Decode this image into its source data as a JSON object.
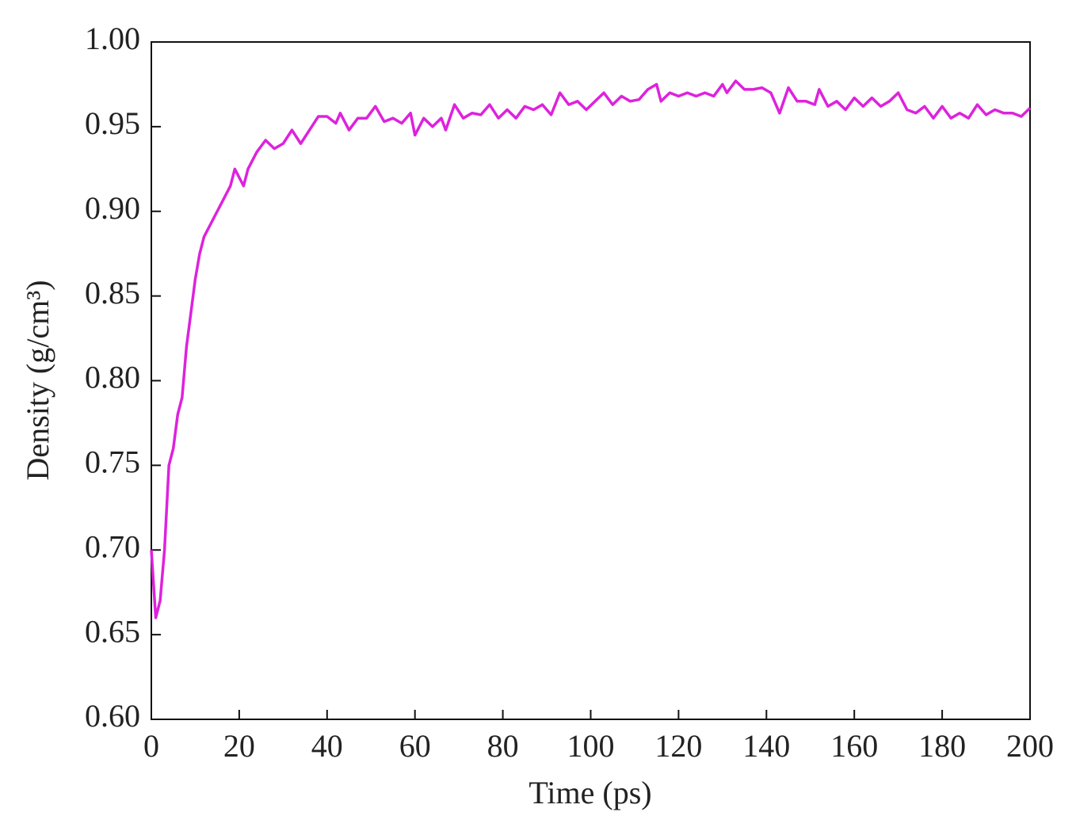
{
  "chart_data": {
    "type": "line",
    "xlabel": "Time (ps)",
    "ylabel": "Density (g/cm³)",
    "x": [
      0,
      1,
      2,
      3,
      4,
      5,
      6,
      7,
      8,
      9,
      10,
      11,
      12,
      13,
      14,
      15,
      16,
      17,
      18,
      19,
      20,
      21,
      22,
      24,
      26,
      28,
      30,
      32,
      34,
      36,
      38,
      40,
      42,
      43,
      45,
      47,
      49,
      51,
      53,
      55,
      57,
      59,
      60,
      62,
      64,
      66,
      67,
      69,
      71,
      73,
      75,
      77,
      79,
      81,
      83,
      85,
      87,
      89,
      91,
      93,
      95,
      97,
      99,
      101,
      103,
      105,
      107,
      109,
      111,
      113,
      115,
      116,
      118,
      120,
      122,
      124,
      126,
      128,
      130,
      131,
      133,
      135,
      137,
      139,
      141,
      143,
      145,
      147,
      149,
      151,
      152,
      154,
      156,
      158,
      160,
      162,
      164,
      166,
      168,
      170,
      172,
      174,
      176,
      178,
      180,
      182,
      184,
      186,
      188,
      190,
      192,
      194,
      196,
      198,
      200
    ],
    "values": [
      0.7,
      0.66,
      0.67,
      0.7,
      0.75,
      0.76,
      0.78,
      0.79,
      0.82,
      0.84,
      0.86,
      0.875,
      0.885,
      0.89,
      0.895,
      0.9,
      0.905,
      0.91,
      0.915,
      0.925,
      0.92,
      0.915,
      0.925,
      0.935,
      0.942,
      0.937,
      0.94,
      0.948,
      0.94,
      0.948,
      0.956,
      0.956,
      0.952,
      0.958,
      0.948,
      0.955,
      0.955,
      0.962,
      0.953,
      0.955,
      0.952,
      0.958,
      0.945,
      0.955,
      0.95,
      0.955,
      0.948,
      0.963,
      0.955,
      0.958,
      0.957,
      0.963,
      0.955,
      0.96,
      0.955,
      0.962,
      0.96,
      0.963,
      0.957,
      0.97,
      0.963,
      0.965,
      0.96,
      0.965,
      0.97,
      0.963,
      0.968,
      0.965,
      0.966,
      0.972,
      0.975,
      0.965,
      0.97,
      0.968,
      0.97,
      0.968,
      0.97,
      0.968,
      0.975,
      0.97,
      0.977,
      0.972,
      0.972,
      0.973,
      0.97,
      0.958,
      0.973,
      0.965,
      0.965,
      0.963,
      0.972,
      0.962,
      0.965,
      0.96,
      0.967,
      0.962,
      0.967,
      0.962,
      0.965,
      0.97,
      0.96,
      0.958,
      0.962,
      0.955,
      0.962,
      0.955,
      0.958,
      0.955,
      0.963,
      0.957,
      0.96,
      0.958,
      0.958,
      0.956,
      0.961
    ],
    "color": "#dd22dd",
    "xlim": [
      0,
      200
    ],
    "xticks": [
      0,
      20,
      40,
      60,
      80,
      100,
      120,
      140,
      160,
      180,
      200
    ],
    "ylim": [
      0.6,
      1
    ],
    "yticks": [
      {
        "value": 0.6,
        "label": "0.60"
      },
      {
        "value": 0.65,
        "label": "0.65"
      },
      {
        "value": 0.7,
        "label": "0.70"
      },
      {
        "value": 0.75,
        "label": "0.75"
      },
      {
        "value": 0.8,
        "label": "0.80"
      },
      {
        "value": 0.85,
        "label": "0.85"
      },
      {
        "value": 0.9,
        "label": "0.90"
      },
      {
        "value": 0.95,
        "label": "0.95"
      },
      {
        "value": 1,
        "label": "1.00"
      }
    ]
  }
}
